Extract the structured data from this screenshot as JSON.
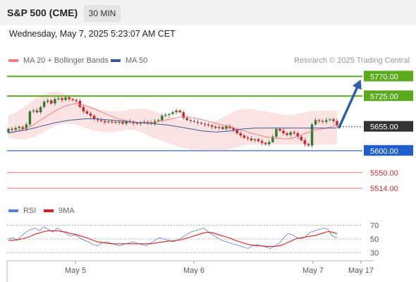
{
  "header": {
    "title": "S&P 500 (CME)",
    "timeframe": "30 MIN",
    "datetime": "Wednesday, May 7, 2025 5:23:07 AM CET"
  },
  "legend": {
    "ma20_label": "MA 20 + Bollinger Bands",
    "ma50_label": "MA 50",
    "credit": "Research © 2025 Trading Central"
  },
  "rsi_legend": {
    "rsi_label": "RSI",
    "ma_label": "9MA"
  },
  "colors": {
    "bull": "#2e7d32",
    "bear": "#c62828",
    "ma20": "#f08080",
    "bands_fill": "#fbdcdc",
    "ma50": "#3a5a9a",
    "resistance": "#5aaa1e",
    "support_blue": "#1e5fcc",
    "support_red": "#f07070",
    "arrow": "#2b5fa8",
    "rsi": "#5b7fd6",
    "rsi_ma": "#e02020"
  },
  "chart_data": [
    {
      "type": "candlestick",
      "title": "",
      "ylim": [
        5490,
        5790
      ],
      "x_ticks": [
        "May 5",
        "May 6",
        "May 7",
        "May 17"
      ],
      "levels": [
        {
          "value": 5770.0,
          "label": "5770.00",
          "kind": "resistance"
        },
        {
          "value": 5725.0,
          "label": "5725.00",
          "kind": "resistance"
        },
        {
          "value": 5655.0,
          "label": "5655.00",
          "kind": "current"
        },
        {
          "value": 5600.0,
          "label": "5600.00",
          "kind": "support"
        },
        {
          "value": 5550.0,
          "label": "5550.00",
          "kind": "support-minor"
        },
        {
          "value": 5514.0,
          "label": "5514.00",
          "kind": "support-minor"
        }
      ],
      "current_price": 5655.0,
      "forecast_target": 5770.0,
      "series": [
        {
          "name": "MA 20",
          "type": "line"
        },
        {
          "name": "MA 50",
          "type": "line"
        }
      ],
      "candles_close": [
        5650,
        5648,
        5652,
        5655,
        5650,
        5660,
        5690,
        5692,
        5688,
        5700,
        5712,
        5715,
        5708,
        5718,
        5720,
        5716,
        5722,
        5718,
        5716,
        5714,
        5700,
        5690,
        5685,
        5680,
        5672,
        5670,
        5668,
        5665,
        5667,
        5666,
        5664,
        5666,
        5662,
        5668,
        5665,
        5663,
        5662,
        5664,
        5666,
        5664,
        5662,
        5668,
        5670,
        5680,
        5682,
        5684,
        5688,
        5692,
        5688,
        5675,
        5670,
        5668,
        5666,
        5664,
        5662,
        5660,
        5658,
        5655,
        5652,
        5654,
        5650,
        5656,
        5652,
        5648,
        5640,
        5635,
        5630,
        5628,
        5624,
        5626,
        5622,
        5618,
        5615,
        5620,
        5632,
        5650,
        5646,
        5640,
        5636,
        5642,
        5640,
        5632,
        5624,
        5615,
        5612,
        5660,
        5670,
        5668,
        5666,
        5670,
        5672,
        5668,
        5658
      ],
      "candles_open": [
        5642,
        5650,
        5648,
        5652,
        5654,
        5650,
        5660,
        5690,
        5692,
        5688,
        5700,
        5712,
        5715,
        5708,
        5718,
        5720,
        5716,
        5722,
        5718,
        5716,
        5714,
        5700,
        5690,
        5685,
        5680,
        5672,
        5670,
        5668,
        5665,
        5667,
        5666,
        5664,
        5666,
        5662,
        5668,
        5665,
        5663,
        5662,
        5664,
        5666,
        5664,
        5662,
        5668,
        5670,
        5680,
        5682,
        5684,
        5688,
        5692,
        5688,
        5675,
        5670,
        5668,
        5666,
        5664,
        5662,
        5660,
        5658,
        5655,
        5652,
        5654,
        5650,
        5656,
        5652,
        5648,
        5640,
        5635,
        5630,
        5628,
        5624,
        5626,
        5622,
        5618,
        5615,
        5620,
        5632,
        5650,
        5646,
        5640,
        5636,
        5642,
        5640,
        5632,
        5624,
        5615,
        5612,
        5660,
        5670,
        5668,
        5666,
        5670,
        5672,
        5668
      ],
      "ma20": [
        5640,
        5643,
        5646,
        5650,
        5654,
        5660,
        5668,
        5676,
        5683,
        5690,
        5696,
        5702,
        5705,
        5708,
        5706,
        5703,
        5699,
        5694,
        5689,
        5684,
        5679,
        5675,
        5671,
        5668,
        5666,
        5665,
        5664,
        5664,
        5665,
        5667,
        5669,
        5671,
        5674,
        5676,
        5678,
        5677,
        5675,
        5673,
        5670,
        5667,
        5664,
        5661,
        5658,
        5656,
        5652,
        5648,
        5645,
        5641,
        5638,
        5635,
        5632,
        5630,
        5629,
        5628,
        5627,
        5628,
        5632,
        5636,
        5640,
        5645,
        5648,
        5650,
        5652,
        5655,
        5658
      ],
      "ma50": [
        5641,
        5643,
        5645,
        5647,
        5649,
        5652,
        5655,
        5658,
        5661,
        5664,
        5666,
        5668,
        5670,
        5671,
        5672,
        5673,
        5673,
        5673,
        5672,
        5671,
        5670,
        5669,
        5668,
        5667,
        5666,
        5665,
        5664,
        5663,
        5662,
        5661,
        5660,
        5659,
        5657,
        5655,
        5653,
        5651,
        5649,
        5647,
        5645,
        5644,
        5643,
        5643,
        5644,
        5645,
        5647,
        5649,
        5650,
        5651,
        5652,
        5652,
        5652,
        5652,
        5652,
        5652,
        5652,
        5652,
        5652,
        5652,
        5652,
        5652,
        5652,
        5652,
        5652,
        5652,
        5652
      ],
      "bb_upper": [
        5680,
        5686,
        5692,
        5700,
        5708,
        5716,
        5724,
        5730,
        5734,
        5736,
        5734,
        5730,
        5724,
        5718,
        5712,
        5706,
        5702,
        5698,
        5694,
        5692,
        5690,
        5690,
        5691,
        5693,
        5695,
        5696,
        5696,
        5695,
        5692,
        5688,
        5684,
        5680,
        5676,
        5672,
        5668,
        5665,
        5662,
        5660,
        5660,
        5662,
        5666,
        5672,
        5678,
        5684,
        5690,
        5694,
        5696,
        5696,
        5694,
        5692,
        5690,
        5688,
        5686,
        5684,
        5682,
        5682,
        5684,
        5686,
        5688,
        5690,
        5692,
        5692,
        5692,
        5692,
        5692
      ],
      "bb_lower": [
        5630,
        5628,
        5626,
        5626,
        5628,
        5632,
        5638,
        5644,
        5650,
        5656,
        5660,
        5662,
        5662,
        5660,
        5656,
        5652,
        5648,
        5646,
        5644,
        5642,
        5642,
        5644,
        5646,
        5648,
        5648,
        5646,
        5642,
        5636,
        5630,
        5626,
        5622,
        5618,
        5614,
        5610,
        5606,
        5604,
        5602,
        5600,
        5600,
        5600,
        5600,
        5600,
        5601,
        5603,
        5606,
        5610,
        5612,
        5614,
        5614,
        5614,
        5614,
        5614,
        5614,
        5614,
        5614,
        5614,
        5614,
        5614,
        5614,
        5614,
        5614,
        5614,
        5614,
        5614,
        5614
      ]
    },
    {
      "type": "line",
      "title": "",
      "ylim": [
        20,
        80
      ],
      "y_ticks": [
        30,
        50,
        70
      ],
      "series": [
        {
          "name": "RSI",
          "values": [
            50,
            52,
            48,
            55,
            60,
            64,
            66,
            62,
            68,
            64,
            60,
            66,
            62,
            58,
            54,
            56,
            52,
            48,
            46,
            42,
            40,
            44,
            46,
            44,
            42,
            40,
            42,
            44,
            46,
            44,
            42,
            40,
            44,
            48,
            52,
            50,
            48,
            46,
            48,
            52,
            56,
            60,
            62,
            64,
            66,
            60,
            56,
            52,
            48,
            46,
            44,
            42,
            40,
            38,
            36,
            40,
            42,
            40,
            38,
            36,
            40,
            44,
            52,
            58,
            56,
            52,
            50,
            54,
            60,
            62,
            64,
            66,
            64,
            54,
            52
          ]
        },
        {
          "name": "9MA",
          "values": [
            48,
            48,
            49,
            50,
            52,
            54,
            57,
            59,
            61,
            62,
            62,
            62,
            61,
            60,
            58,
            57,
            55,
            53,
            51,
            48,
            46,
            45,
            44,
            43,
            43,
            43,
            43,
            43,
            43,
            43,
            43,
            43,
            43,
            44,
            45,
            46,
            47,
            47,
            48,
            49,
            51,
            53,
            55,
            57,
            59,
            60,
            59,
            57,
            55,
            53,
            51,
            48,
            46,
            44,
            42,
            41,
            40,
            40,
            39,
            39,
            39,
            40,
            42,
            45,
            48,
            51,
            52,
            53,
            54,
            55,
            57,
            59,
            61,
            60,
            58
          ]
        }
      ]
    }
  ]
}
